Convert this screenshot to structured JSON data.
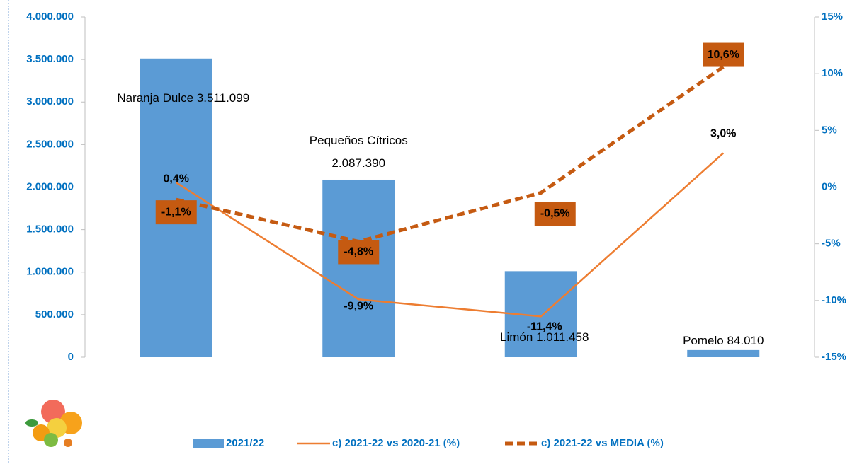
{
  "chart_data": {
    "type": "bar",
    "categories": [
      "Naranja Dulce",
      "Pequeños Cítricos",
      "Limón",
      "Pomelo"
    ],
    "series": [
      {
        "name": "2021/22",
        "type": "bar",
        "color": "#5b9bd5",
        "values": [
          3511099,
          2087390,
          1011458,
          84010
        ],
        "value_labels": [
          "3.511.099",
          "2.087.390",
          "1.011.458",
          "84.010"
        ]
      },
      {
        "name": "c) 2021-22 vs 2020-21 (%)",
        "type": "line",
        "axis": "y2",
        "color": "#ed7d31",
        "line_style": "solid",
        "values": [
          0.4,
          -9.9,
          -11.4,
          3.0
        ],
        "value_labels": [
          "0,4%",
          "-9,9%",
          "-11,4%",
          "3,0%"
        ]
      },
      {
        "name": "c) 2021-22 vs MEDIA (%)",
        "type": "line",
        "axis": "y2",
        "color": "#c55a11",
        "line_style": "dashed",
        "values": [
          -1.1,
          -4.8,
          -0.5,
          10.6
        ],
        "value_labels": [
          "-1,1%",
          "-4,8%",
          "-0,5%",
          "10,6%"
        ]
      }
    ],
    "ylim": [
      0,
      4000000
    ],
    "yticks": [
      0,
      {
        "value": 500000,
        "label": "500.000"
      },
      {
        "value": 1000000,
        "label": "1.000.000"
      },
      {
        "value": 1500000,
        "label": "1.500.000"
      },
      {
        "value": 2000000,
        "label": "2.000.000"
      },
      {
        "value": 2500000,
        "label": "2.500.000"
      },
      {
        "value": 3000000,
        "label": "3.000.000"
      },
      {
        "value": 3500000,
        "label": "3.500.000"
      },
      {
        "value": 4000000,
        "label": "4.000.000"
      }
    ],
    "y2lim": [
      -15,
      15
    ],
    "y2ticks": [
      {
        "value": -15,
        "label": "-15%"
      },
      {
        "value": -10,
        "label": "-10%"
      },
      {
        "value": -5,
        "label": "-5%"
      },
      {
        "value": 0,
        "label": "0%"
      },
      {
        "value": 5,
        "label": "5%"
      },
      {
        "value": 10,
        "label": "10%"
      },
      {
        "value": 15,
        "label": "15%"
      }
    ],
    "legend": "bottom"
  }
}
